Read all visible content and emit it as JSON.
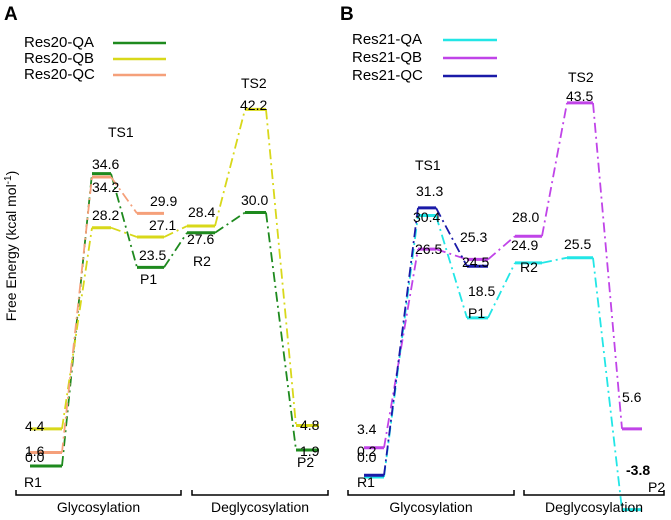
{
  "y_axis_label": "Free Energy (kcal mol",
  "y_axis_label_sup": "-1",
  "y_axis_label_end": ")",
  "colors": {
    "QA": "#1e8a1e",
    "QB": "#d8d81a",
    "QC": "#f5a07a",
    "Res21QA": "#22e6e6",
    "Res21QB": "#c044e8",
    "Res21QC": "#1a1aa8"
  },
  "chart_data": [
    {
      "type": "line",
      "panel": "A",
      "ylabel": "Free Energy (kcal mol-1)",
      "xlabel": "",
      "ylim": [
        -2,
        45
      ],
      "states": [
        "R1",
        "TS1",
        "P1",
        "R2",
        "TS2",
        "P2"
      ],
      "phases": [
        "Glycosylation",
        "Deglycosylation"
      ],
      "legend_position": "top-left",
      "series": [
        {
          "name": "Res20-QA",
          "color_key": "QA",
          "dash": "dashdot",
          "values": [
            0.0,
            34.6,
            23.5,
            27.6,
            30.0,
            1.9
          ]
        },
        {
          "name": "Res20-QB",
          "color_key": "QB",
          "dash": "dashdot",
          "values": [
            4.4,
            28.2,
            27.1,
            28.4,
            42.2,
            4.8
          ]
        },
        {
          "name": "Res20-QC",
          "color_key": "QC",
          "dash": "dashdot",
          "values": [
            1.6,
            34.2,
            29.9,
            null,
            null,
            null
          ]
        }
      ],
      "value_labels": [
        {
          "series": 0,
          "index": 0,
          "text": "0.0"
        },
        {
          "series": 0,
          "index": 1,
          "text": "34.6"
        },
        {
          "series": 0,
          "index": 2,
          "text": "23.5"
        },
        {
          "series": 0,
          "index": 3,
          "text": "27.6"
        },
        {
          "series": 0,
          "index": 4,
          "text": "30.0"
        },
        {
          "series": 0,
          "index": 5,
          "text": "1.9"
        },
        {
          "series": 1,
          "index": 0,
          "text": "4.4"
        },
        {
          "series": 1,
          "index": 1,
          "text": "28.2"
        },
        {
          "series": 1,
          "index": 2,
          "text": "27.1"
        },
        {
          "series": 1,
          "index": 3,
          "text": "28.4"
        },
        {
          "series": 1,
          "index": 4,
          "text": "42.2"
        },
        {
          "series": 1,
          "index": 5,
          "text": "4.8"
        },
        {
          "series": 2,
          "index": 0,
          "text": "1.6"
        },
        {
          "series": 2,
          "index": 1,
          "text": "34.2"
        },
        {
          "series": 2,
          "index": 2,
          "text": "29.9"
        }
      ]
    },
    {
      "type": "line",
      "panel": "B",
      "ylabel": "",
      "xlabel": "",
      "ylim": [
        -5,
        45
      ],
      "states": [
        "R1",
        "TS1",
        "P1",
        "R2",
        "TS2",
        "P2"
      ],
      "phases": [
        "Glycosylation",
        "Deglycosylation"
      ],
      "legend_position": "top-left",
      "series": [
        {
          "name": "Res21-QA",
          "color_key": "Res21QA",
          "dash": "dashdot",
          "values": [
            0.0,
            30.4,
            18.5,
            24.9,
            25.5,
            -3.8
          ]
        },
        {
          "name": "Res21-QB",
          "color_key": "Res21QB",
          "dash": "dashdot",
          "values": [
            3.4,
            26.5,
            25.3,
            28.0,
            43.5,
            5.6
          ]
        },
        {
          "name": "Res21-QC",
          "color_key": "Res21QC",
          "dash": "dashdot",
          "values": [
            0.2,
            31.3,
            24.5,
            null,
            null,
            null
          ]
        }
      ],
      "value_labels": [
        {
          "series": 0,
          "index": 0,
          "text": "0.0"
        },
        {
          "series": 0,
          "index": 1,
          "text": "30.4"
        },
        {
          "series": 0,
          "index": 2,
          "text": "18.5"
        },
        {
          "series": 0,
          "index": 3,
          "text": "24.9"
        },
        {
          "series": 0,
          "index": 4,
          "text": "25.5"
        },
        {
          "series": 0,
          "index": 5,
          "text": "-3.8"
        },
        {
          "series": 1,
          "index": 0,
          "text": "3.4"
        },
        {
          "series": 1,
          "index": 1,
          "text": "26.5"
        },
        {
          "series": 1,
          "index": 2,
          "text": "25.3"
        },
        {
          "series": 1,
          "index": 3,
          "text": "28.0"
        },
        {
          "series": 1,
          "index": 4,
          "text": "43.5"
        },
        {
          "series": 1,
          "index": 5,
          "text": "5.6"
        },
        {
          "series": 2,
          "index": 0,
          "text": "0.2"
        },
        {
          "series": 2,
          "index": 1,
          "text": "31.3"
        },
        {
          "series": 2,
          "index": 2,
          "text": "24.5"
        }
      ]
    }
  ]
}
